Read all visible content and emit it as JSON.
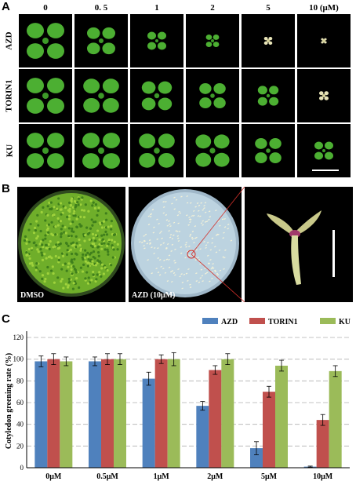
{
  "panels": {
    "a": "A",
    "b": "B",
    "c": "C"
  },
  "concentrations": [
    "0",
    "0. 5",
    "1",
    "2",
    "5",
    "10 (μM)"
  ],
  "rows": [
    "AZD",
    "TORIN1",
    "KU"
  ],
  "plant_sizes": [
    [
      1.0,
      0.75,
      0.5,
      0.35,
      0.22,
      0.15
    ],
    [
      1.0,
      0.95,
      0.8,
      0.7,
      0.55,
      0.25
    ],
    [
      1.0,
      1.0,
      0.95,
      0.9,
      0.7,
      0.5
    ]
  ],
  "panel_b": {
    "dmso_caption": "DMSO",
    "azd_caption": "AZD (10μM)"
  },
  "colors": {
    "AZD": "#4f81bd",
    "TORIN1": "#c0504d",
    "KU": "#9bbb59",
    "plant_green": "#4caf32"
  },
  "chart_data": {
    "type": "bar",
    "ylabel": "Cotyledon greening rate (%)",
    "ylim": [
      0,
      120
    ],
    "yticks": [
      0,
      20,
      40,
      60,
      80,
      100,
      120
    ],
    "categories": [
      "0μM",
      "0.5μM",
      "1μM",
      "2μM",
      "5μM",
      "10μM"
    ],
    "series": [
      {
        "name": "AZD",
        "values": [
          98,
          98,
          82,
          57,
          18,
          1
        ],
        "errors": [
          5,
          4,
          6,
          4,
          6,
          0.5
        ]
      },
      {
        "name": "TORIN1",
        "values": [
          100,
          100,
          100,
          90,
          70,
          44
        ],
        "errors": [
          5,
          5,
          4,
          4,
          5,
          5
        ]
      },
      {
        "name": "KU",
        "values": [
          98,
          100,
          100,
          100,
          94,
          89
        ],
        "errors": [
          4,
          5,
          6,
          5,
          5,
          5
        ]
      }
    ],
    "legend_position": "top-right",
    "grid": true
  }
}
